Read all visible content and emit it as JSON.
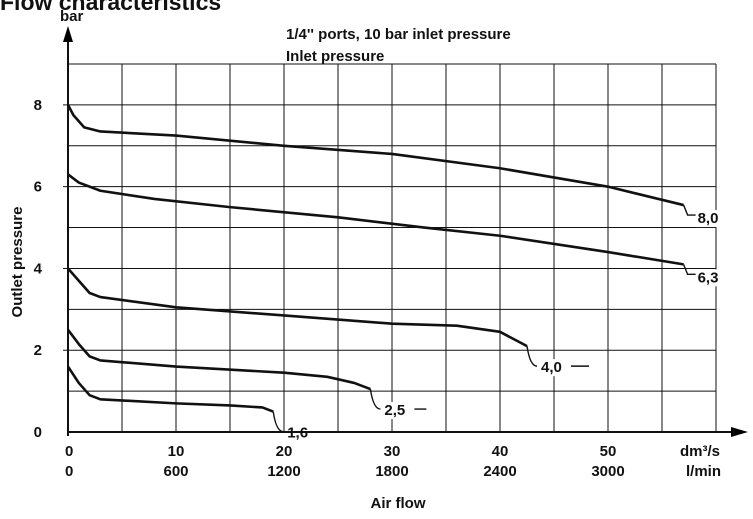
{
  "page_title_partial": "Flow characteristics",
  "chart_data": {
    "type": "line",
    "title_lines": [
      "1/4'' ports, 10 bar inlet pressure",
      "Inlet pressure"
    ],
    "xlabel": "Air flow",
    "ylabel": "Outlet pressure",
    "y_unit": "bar",
    "x_unit_primary": "dm³/s",
    "x_unit_secondary": "l/min",
    "xlim": [
      0,
      60
    ],
    "ylim": [
      0,
      9
    ],
    "x_grid_step": 5,
    "y_grid_step": 1,
    "grid": true,
    "x_ticks_primary": [
      "0",
      "10",
      "20",
      "30",
      "40",
      "50"
    ],
    "x_ticks_secondary": [
      "0",
      "600",
      "1200",
      "1800",
      "2400",
      "3000"
    ],
    "y_ticks": [
      "0",
      "2",
      "4",
      "6",
      "8"
    ],
    "series": [
      {
        "name": "8,0",
        "x": [
          0,
          0.5,
          1.5,
          3,
          10,
          20,
          30,
          40,
          50,
          57
        ],
        "y": [
          8.0,
          7.75,
          7.45,
          7.35,
          7.25,
          7.0,
          6.8,
          6.45,
          6.0,
          5.55
        ]
      },
      {
        "name": "6,3",
        "x": [
          0,
          1,
          3,
          8,
          15,
          25,
          33,
          40,
          50,
          57
        ],
        "y": [
          6.3,
          6.1,
          5.9,
          5.7,
          5.5,
          5.25,
          5.0,
          4.8,
          4.4,
          4.1
        ]
      },
      {
        "name": "4,0",
        "x": [
          0,
          1,
          2,
          3,
          10,
          20,
          30,
          36,
          40,
          42.5
        ],
        "y": [
          4.0,
          3.7,
          3.4,
          3.3,
          3.05,
          2.85,
          2.65,
          2.6,
          2.45,
          2.1
        ]
      },
      {
        "name": "2,5",
        "x": [
          0,
          1,
          2,
          3,
          10,
          20,
          24,
          26.5,
          28
        ],
        "y": [
          2.5,
          2.15,
          1.85,
          1.75,
          1.6,
          1.45,
          1.35,
          1.2,
          1.05
        ]
      },
      {
        "name": "1,6",
        "x": [
          0,
          1,
          2,
          3,
          10,
          15,
          18,
          19
        ],
        "y": [
          1.6,
          1.2,
          0.9,
          0.8,
          0.7,
          0.65,
          0.6,
          0.5
        ]
      }
    ]
  }
}
